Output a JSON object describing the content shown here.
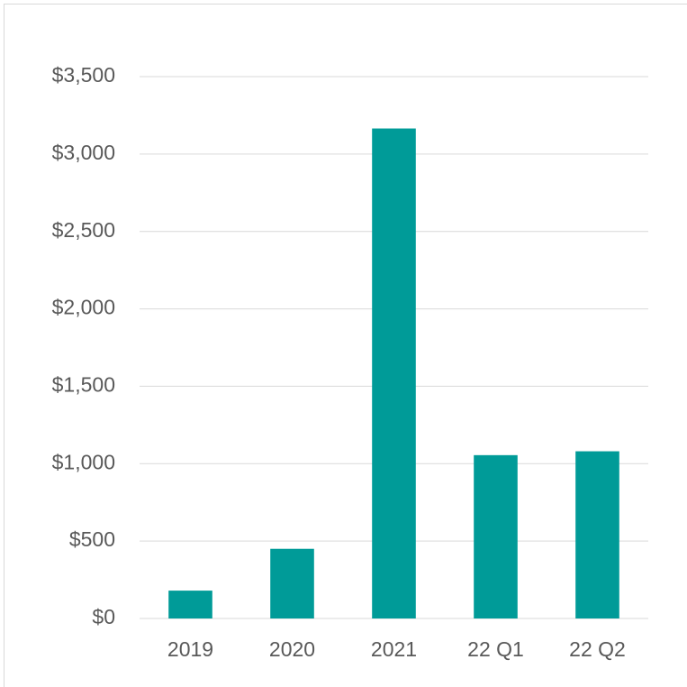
{
  "chart_data": {
    "type": "bar",
    "categories": [
      "2019",
      "2020",
      "2021",
      "22 Q1",
      "22 Q2"
    ],
    "values": [
      180,
      450,
      3165,
      1055,
      1080
    ],
    "color": "#009b98",
    "ylim": [
      0,
      3500
    ],
    "yticks": [
      {
        "value": 0,
        "label": "$0"
      },
      {
        "value": 500,
        "label": "$500"
      },
      {
        "value": 1000,
        "label": "$1,000"
      },
      {
        "value": 1500,
        "label": "$1,500"
      },
      {
        "value": 2000,
        "label": "$2,000"
      },
      {
        "value": 2500,
        "label": "$2,500"
      },
      {
        "value": 3000,
        "label": "$3,000"
      },
      {
        "value": 3500,
        "label": "$3,500"
      }
    ],
    "grid": true
  }
}
